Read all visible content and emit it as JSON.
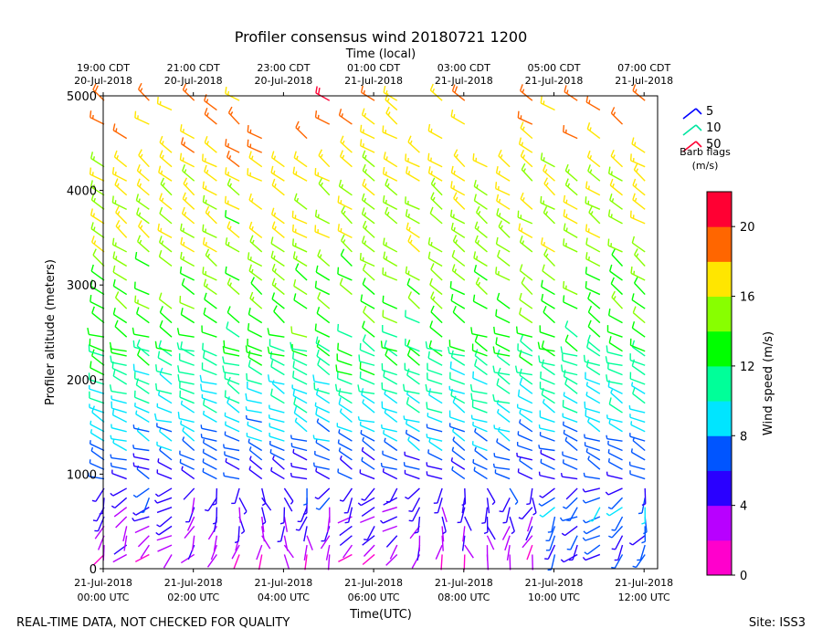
{
  "chart_data": {
    "type": "wind-barb",
    "title": "Profiler consensus wind 20180721 1200",
    "xlabel": "Time(UTC)",
    "x2label": "Time (local)",
    "ylabel": "Profiler altitude (meters)",
    "ylim": [
      0,
      5000
    ],
    "xlim_hours_utc": [
      0,
      12.3
    ],
    "y_ticks": [
      "0",
      "1000",
      "2000",
      "3000",
      "4000",
      "5000"
    ],
    "x_ticks": [
      {
        "hour": 0,
        "line1": "21-Jul-2018",
        "line2": "00:00 UTC"
      },
      {
        "hour": 2,
        "line1": "21-Jul-2018",
        "line2": "02:00 UTC"
      },
      {
        "hour": 4,
        "line1": "21-Jul-2018",
        "line2": "04:00 UTC"
      },
      {
        "hour": 6,
        "line1": "21-Jul-2018",
        "line2": "06:00 UTC"
      },
      {
        "hour": 8,
        "line1": "21-Jul-2018",
        "line2": "08:00 UTC"
      },
      {
        "hour": 10,
        "line1": "21-Jul-2018",
        "line2": "10:00 UTC"
      },
      {
        "hour": 12,
        "line1": "21-Jul-2018",
        "line2": "12:00 UTC"
      }
    ],
    "x2_ticks": [
      {
        "hour": 0,
        "line1": "19:00 CDT",
        "line2": "20-Jul-2018"
      },
      {
        "hour": 2,
        "line1": "21:00 CDT",
        "line2": "20-Jul-2018"
      },
      {
        "hour": 4,
        "line1": "23:00 CDT",
        "line2": "20-Jul-2018"
      },
      {
        "hour": 6,
        "line1": "01:00 CDT",
        "line2": "21-Jul-2018"
      },
      {
        "hour": 8,
        "line1": "03:00 CDT",
        "line2": "21-Jul-2018"
      },
      {
        "hour": 10,
        "line1": "05:00 CDT",
        "line2": "21-Jul-2018"
      },
      {
        "hour": 12,
        "line1": "07:00 CDT",
        "line2": "21-Jul-2018"
      }
    ],
    "barb_legend": {
      "title_line1": "Barb flags",
      "title_line2": "(m/s)",
      "items": [
        {
          "value": "5",
          "color": "#0000ff"
        },
        {
          "value": "10",
          "color": "#00e5a0"
        },
        {
          "value": "50",
          "color": "#ff0033"
        }
      ]
    },
    "colorbar": {
      "label": "Wind speed (m/s)",
      "range": [
        0,
        22
      ],
      "ticks": [
        "0",
        "4",
        "8",
        "12",
        "16",
        "20"
      ],
      "colors": [
        "#ff00cc",
        "#b800ff",
        "#2a00ff",
        "#0055ff",
        "#00e5ff",
        "#00ff99",
        "#00ff00",
        "#88ff00",
        "#ffe600",
        "#ff6600",
        "#ff0033"
      ]
    },
    "time_step_hours": 0.5,
    "heights_m_low": [
      150,
      250,
      350,
      450,
      550,
      650,
      750,
      850,
      950,
      1050,
      1150,
      1250,
      1350,
      1450,
      1550,
      1650,
      1750,
      1850,
      1950,
      2050,
      2150,
      2250
    ],
    "heights_m_high": [
      2300,
      2450,
      2600,
      2750,
      2900,
      3050,
      3200,
      3350,
      3500,
      3650,
      3800,
      3950,
      4100,
      4250,
      4400,
      4550,
      4700,
      4850,
      4950
    ]
  },
  "footer": {
    "left": "REAL-TIME DATA, NOT CHECKED FOR QUALITY",
    "right": "Site: ISS3"
  }
}
